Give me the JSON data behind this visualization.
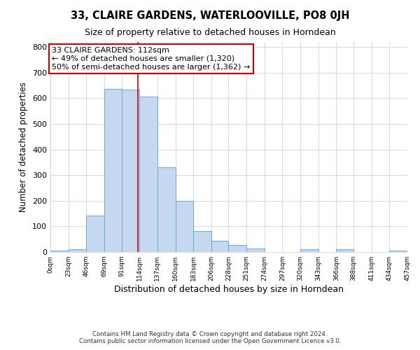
{
  "title": "33, CLAIRE GARDENS, WATERLOOVILLE, PO8 0JH",
  "subtitle": "Size of property relative to detached houses in Horndean",
  "xlabel": "Distribution of detached houses by size in Horndean",
  "ylabel": "Number of detached properties",
  "footer_line1": "Contains HM Land Registry data © Crown copyright and database right 2024.",
  "footer_line2": "Contains public sector information licensed under the Open Government Licence v3.0.",
  "bin_edges": [
    0,
    23,
    46,
    69,
    91,
    114,
    137,
    160,
    183,
    206,
    228,
    251,
    274,
    297,
    320,
    343,
    366,
    388,
    411,
    434,
    457
  ],
  "bin_labels": [
    "0sqm",
    "23sqm",
    "46sqm",
    "69sqm",
    "91sqm",
    "114sqm",
    "137sqm",
    "160sqm",
    "183sqm",
    "206sqm",
    "228sqm",
    "251sqm",
    "274sqm",
    "297sqm",
    "320sqm",
    "343sqm",
    "366sqm",
    "388sqm",
    "411sqm",
    "434sqm",
    "457sqm"
  ],
  "counts": [
    5,
    10,
    143,
    636,
    633,
    607,
    332,
    200,
    83,
    43,
    27,
    13,
    0,
    0,
    10,
    0,
    10,
    0,
    0,
    5
  ],
  "property_size": 112,
  "vline_color": "#cc0000",
  "bar_facecolor": "#c5d8ef",
  "bar_edgecolor": "#6aaad4",
  "annotation_title": "33 CLAIRE GARDENS: 112sqm",
  "annotation_line1": "← 49% of detached houses are smaller (1,320)",
  "annotation_line2": "50% of semi-detached houses are larger (1,362) →",
  "annotation_box_color": "#ffffff",
  "annotation_box_edgecolor": "#cc0000",
  "ylim": [
    0,
    820
  ],
  "yticks": [
    0,
    100,
    200,
    300,
    400,
    500,
    600,
    700,
    800
  ],
  "bg_color": "#ffffff",
  "grid_color": "#d0dce8"
}
